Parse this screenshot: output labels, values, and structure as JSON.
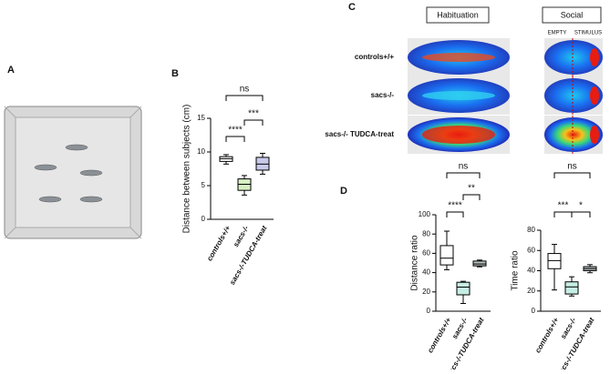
{
  "panels": {
    "a": "A",
    "b": "B",
    "c": "C",
    "d": "D"
  },
  "heatmaps": {
    "habituation": "Habituation",
    "social": "Social",
    "empty": "EMPTY",
    "stimulus": "STIMULUS",
    "rows": [
      "controls+/+",
      "sacs-/-",
      "sacs-/- TUDCA-treat"
    ]
  },
  "chart_data": [
    {
      "type": "box",
      "y_label": "Distance between subjects (cm)",
      "categories": [
        "controls+/+",
        "sacs-/-",
        "sacs-/-TUDCA-treat"
      ],
      "colors": [
        "#ffffff",
        "#d6efc4",
        "#c9c9ea"
      ],
      "min": [
        8.2,
        3.6,
        6.7
      ],
      "q1": [
        8.6,
        4.3,
        7.3
      ],
      "median": [
        9,
        5.2,
        8.2
      ],
      "q3": [
        9.3,
        6,
        9.2
      ],
      "max": [
        9.6,
        6.5,
        9.8
      ],
      "ylim": [
        0,
        15
      ],
      "yticks": [
        0,
        5,
        10,
        15
      ],
      "annotations": [
        "ns",
        "****",
        "***"
      ]
    },
    {
      "type": "box",
      "y_label": "Distance ratio",
      "categories": [
        "controls+/+",
        "sacs-/-",
        "sacs-/-TUDCA-treat"
      ],
      "colors": [
        "#ffffff",
        "#c6eee4",
        "#b9c2c4"
      ],
      "min": [
        43,
        8,
        46
      ],
      "q1": [
        48,
        17,
        47
      ],
      "median": [
        55,
        25,
        49
      ],
      "q3": [
        68,
        30,
        52
      ],
      "max": [
        83,
        31,
        53
      ],
      "ylim": [
        0,
        100
      ],
      "yticks": [
        0,
        20,
        40,
        60,
        80,
        100
      ],
      "annotations": [
        "ns",
        "**",
        "****"
      ]
    },
    {
      "type": "box",
      "y_label": "Time ratio",
      "categories": [
        "controls+/+",
        "sacs-/-",
        "sacs-/-TUDCA-treat"
      ],
      "colors": [
        "#ffffff",
        "#c6eee4",
        "#b9c2c4"
      ],
      "min": [
        21,
        15,
        38
      ],
      "q1": [
        42,
        17,
        40
      ],
      "median": [
        50,
        24,
        42
      ],
      "q3": [
        57,
        29,
        44
      ],
      "max": [
        66,
        34,
        46
      ],
      "ylim": [
        0,
        80
      ],
      "yticks": [
        0,
        20,
        40,
        60,
        80
      ],
      "annotations": [
        "ns",
        "***",
        "*"
      ]
    }
  ]
}
